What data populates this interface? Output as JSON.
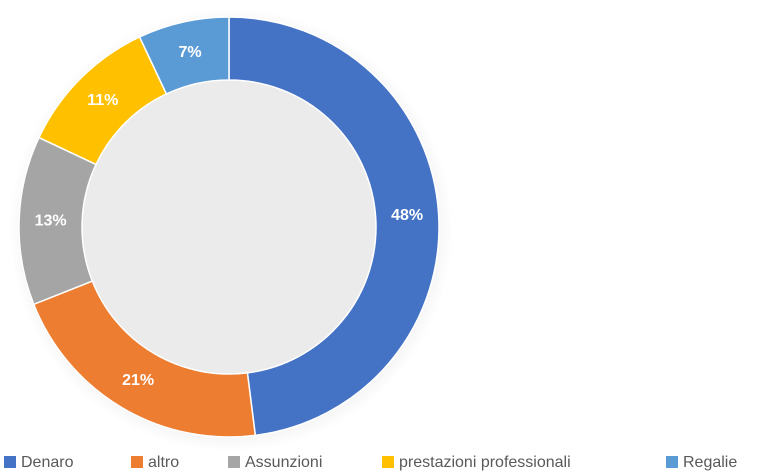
{
  "chart_data": {
    "type": "donut",
    "categories": [
      "Denaro",
      "altro",
      "Assunzioni",
      "prestazioni professionali",
      "Regalie"
    ],
    "values": [
      48,
      21,
      13,
      11,
      7
    ],
    "value_labels": [
      "48%",
      "21%",
      "13%",
      "11%",
      "7%"
    ],
    "colors": [
      "#4472c4",
      "#ed7d31",
      "#a5a5a5",
      "#ffc000",
      "#5b9bd5"
    ],
    "legend": "bottom"
  }
}
